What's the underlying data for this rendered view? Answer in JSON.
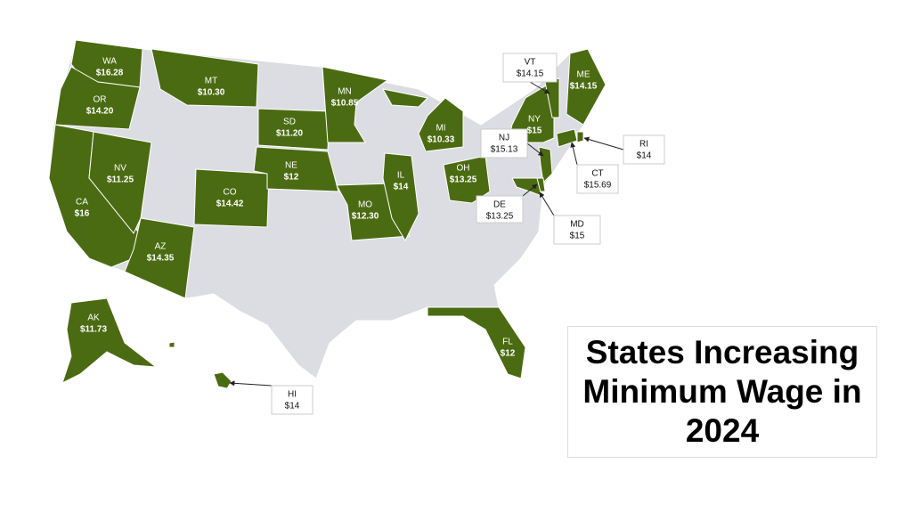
{
  "title": "States Increasing Minimum Wage in 2024",
  "states": [
    {
      "abbr": "WA",
      "wage": "$16.28"
    },
    {
      "abbr": "OR",
      "wage": "$14.20"
    },
    {
      "abbr": "CA",
      "wage": "$16"
    },
    {
      "abbr": "NV",
      "wage": "$11.25"
    },
    {
      "abbr": "MT",
      "wage": "$10.30"
    },
    {
      "abbr": "AZ",
      "wage": "$14.35"
    },
    {
      "abbr": "CO",
      "wage": "$14.42"
    },
    {
      "abbr": "SD",
      "wage": "$11.20"
    },
    {
      "abbr": "NE",
      "wage": "$12"
    },
    {
      "abbr": "MN",
      "wage": "$10.85"
    },
    {
      "abbr": "MO",
      "wage": "$12.30"
    },
    {
      "abbr": "IL",
      "wage": "$14"
    },
    {
      "abbr": "MI",
      "wage": "$10.33"
    },
    {
      "abbr": "OH",
      "wage": "$13.25"
    },
    {
      "abbr": "NY",
      "wage": "$15"
    },
    {
      "abbr": "VT",
      "wage": "$14.15"
    },
    {
      "abbr": "ME",
      "wage": "$14.15"
    },
    {
      "abbr": "NJ",
      "wage": "$15.13"
    },
    {
      "abbr": "CT",
      "wage": "$15.69"
    },
    {
      "abbr": "RI",
      "wage": "$14"
    },
    {
      "abbr": "DE",
      "wage": "$13.25"
    },
    {
      "abbr": "MD",
      "wage": "$15"
    },
    {
      "abbr": "FL",
      "wage": "$12"
    },
    {
      "abbr": "AK",
      "wage": "$11.73"
    },
    {
      "abbr": "HI",
      "wage": "$14"
    }
  ]
}
